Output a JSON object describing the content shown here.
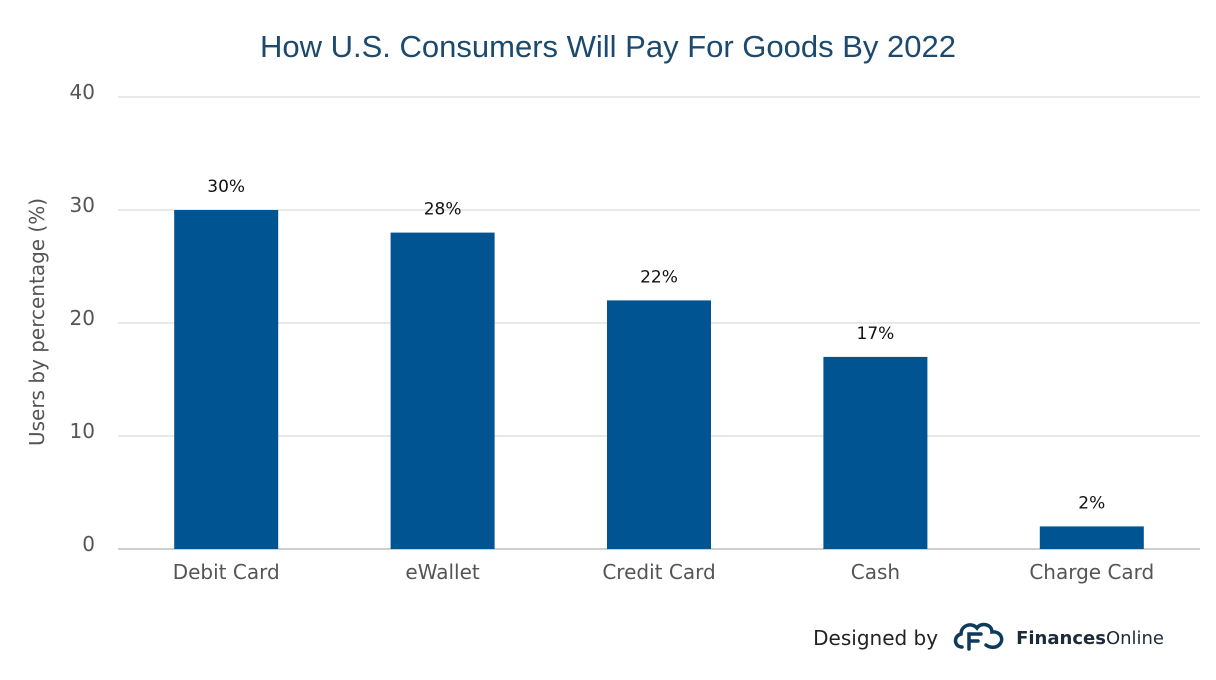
{
  "chart_data": {
    "type": "bar",
    "title": "How U.S. Consumers Will Pay For Goods By 2022",
    "xlabel": "",
    "ylabel": "Users by percentage (%)",
    "categories": [
      "Debit Card",
      "eWallet",
      "Credit Card",
      "Cash",
      "Charge Card"
    ],
    "values": [
      30,
      28,
      22,
      17,
      2
    ],
    "data_labels": [
      "30%",
      "28%",
      "22%",
      "17%",
      "2%"
    ],
    "ylim": [
      0,
      40
    ],
    "yticks": [
      0,
      10,
      20,
      30,
      40
    ],
    "ytick_labels": [
      "0",
      "10",
      "20",
      "30",
      "40"
    ],
    "grid": true,
    "legend": "none",
    "bar_color": "#005492"
  },
  "colors": {
    "title": "#1b4a6e",
    "bar": "#005492",
    "grid": "#e2e2e2",
    "axis_text": "#555555",
    "label_text": "#111111",
    "logo": "#0e3a5b"
  },
  "credit": {
    "designed_by": "Designed by",
    "brand_bold": "Finances",
    "brand_light": "Online",
    "logo_icon": "cloud-f-logo-icon"
  }
}
